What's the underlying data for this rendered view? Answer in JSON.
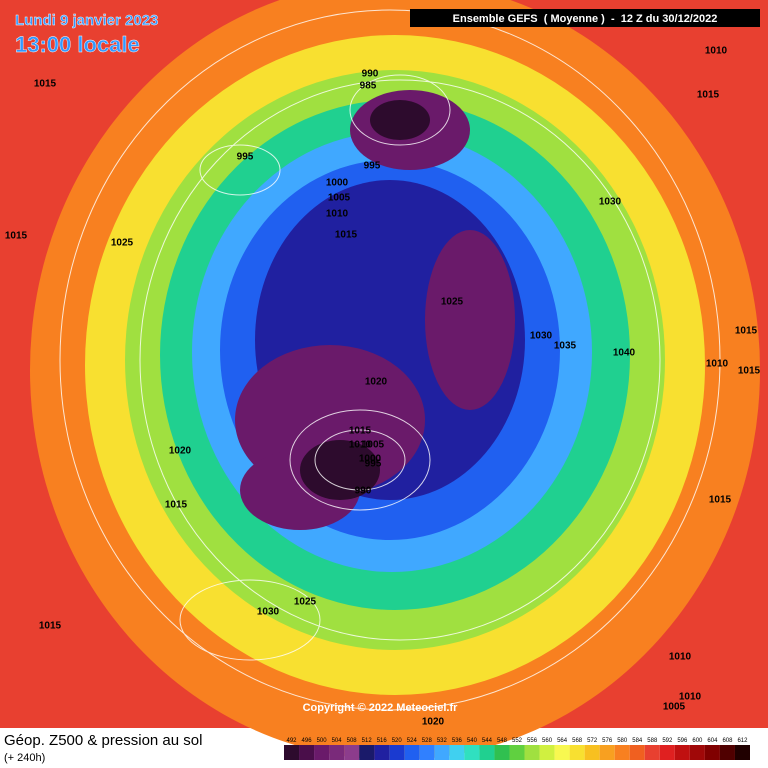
{
  "header": {
    "date": "Lundi 9 janvier 2023",
    "time": "13:00 locale",
    "model": "Ensemble GEFS  ( Moyenne )  -  12 Z du 30/12/2022"
  },
  "footer": {
    "field": "Géop. Z500 & pression au sol",
    "range": "(+ 240h)",
    "copyright": "Copyright © 2022 Meteociel.fr"
  },
  "colorbar": {
    "ticks": [
      492,
      496,
      500,
      504,
      508,
      512,
      516,
      520,
      524,
      528,
      532,
      536,
      540,
      544,
      548,
      552,
      556,
      560,
      564,
      568,
      572,
      576,
      580,
      584,
      588,
      592,
      596,
      600,
      604,
      608,
      612
    ],
    "colors": [
      "#2d0b2d",
      "#4a0e4a",
      "#6a1a6a",
      "#7a2a7a",
      "#8c3c8c",
      "#1a1a6a",
      "#2020a0",
      "#1a3ad0",
      "#2060f0",
      "#3080ff",
      "#40a8ff",
      "#40d0f0",
      "#30e0c0",
      "#20d090",
      "#30c050",
      "#60d040",
      "#a0e040",
      "#d0f040",
      "#f8f850",
      "#f8e030",
      "#f8c020",
      "#f8a020",
      "#f88020",
      "#f06020",
      "#e84030",
      "#e02020",
      "#c01010",
      "#a00808",
      "#800000",
      "#500000",
      "#200000"
    ]
  },
  "isobar_labels": [
    "990",
    "985",
    "995",
    "995",
    "1000",
    "1005",
    "1010",
    "1015",
    "1025",
    "1015",
    "1015",
    "1010",
    "1015",
    "1030",
    "1025",
    "1030",
    "1035",
    "1040",
    "1015",
    "1010",
    "1015",
    "1020",
    "1015",
    "1010",
    "1005",
    "1000",
    "995",
    "990",
    "1020",
    "1015",
    "1015",
    "1030",
    "1025",
    "1015",
    "1010",
    "1010",
    "1005",
    "1020"
  ]
}
